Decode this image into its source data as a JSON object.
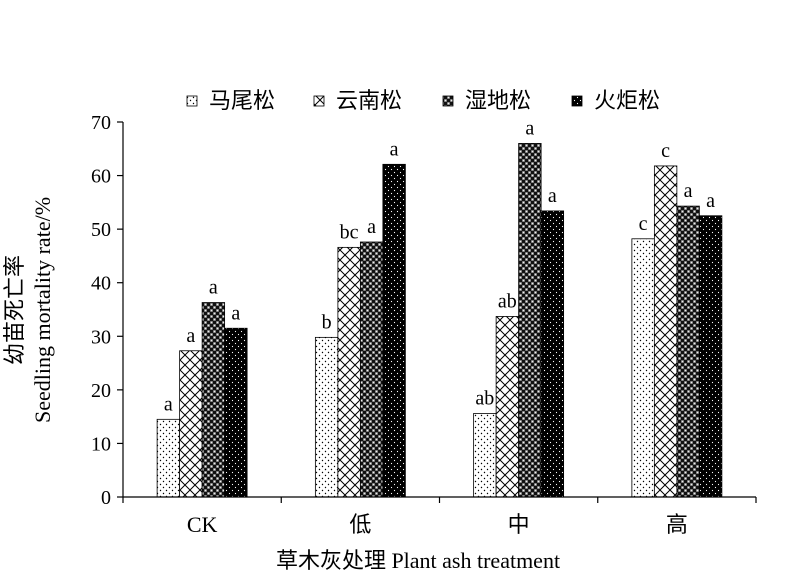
{
  "chart_data": {
    "type": "bar",
    "title": "",
    "xlabel": "草木灰处理 Plant ash treatment",
    "ylabel_cn": "幼苗死亡率",
    "ylabel_en": "Seedling mortality rate/%",
    "ylim": [
      0,
      70
    ],
    "yticks": [
      "0",
      "10",
      "20",
      "30",
      "40",
      "50",
      "60",
      "70"
    ],
    "categories": [
      "CK",
      "低",
      "中",
      "高"
    ],
    "legend_position": "top",
    "series": [
      {
        "name": "马尾松",
        "pattern": "dots-fine",
        "values": [
          14.5,
          29.8,
          15.6,
          48.2
        ],
        "labels": [
          "a",
          "b",
          "ab",
          "c"
        ]
      },
      {
        "name": "云南松",
        "pattern": "crosshatch",
        "values": [
          27.3,
          46.6,
          33.7,
          61.8
        ],
        "labels": [
          "a",
          "bc",
          "ab",
          "c"
        ]
      },
      {
        "name": "湿地松",
        "pattern": "checker",
        "values": [
          36.3,
          47.6,
          66.0,
          54.3
        ],
        "labels": [
          "a",
          "a",
          "a",
          "a"
        ]
      },
      {
        "name": "火炬松",
        "pattern": "black-dots",
        "values": [
          31.5,
          62.1,
          53.4,
          52.5
        ],
        "labels": [
          "a",
          "a",
          "a",
          "a"
        ]
      }
    ]
  }
}
